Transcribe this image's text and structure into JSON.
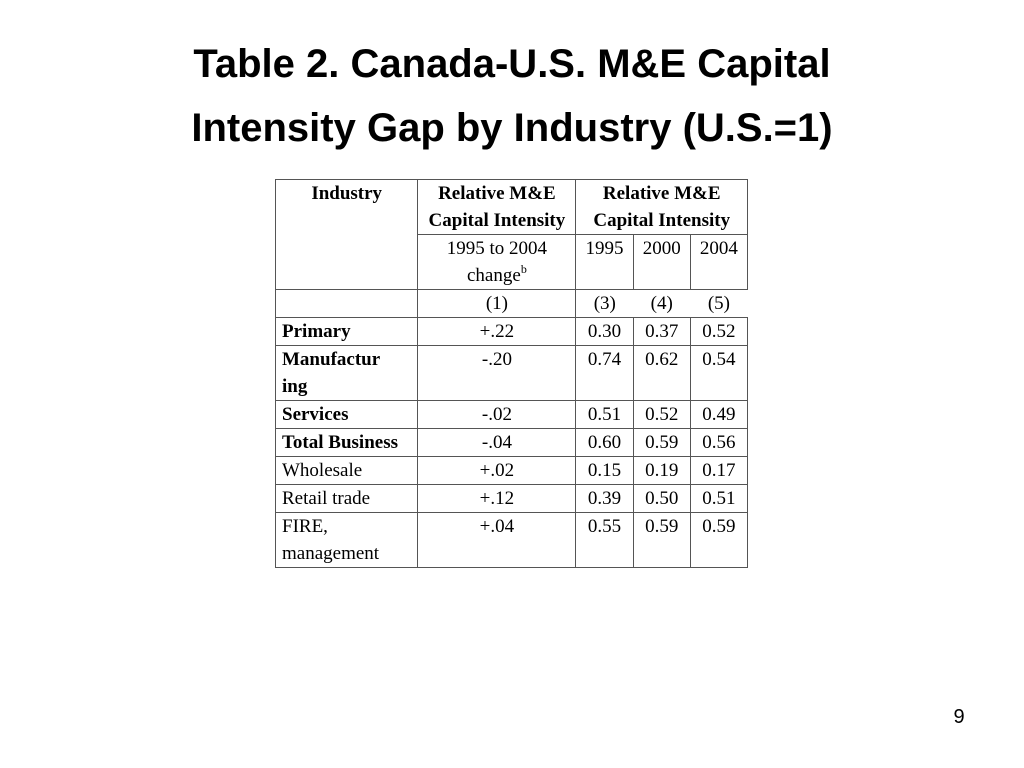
{
  "slide": {
    "title_line1": "Table 2. Canada-U.S. M&E Capital",
    "title_line2": "Intensity Gap by Industry (U.S.=1)",
    "page_number": "9"
  },
  "table": {
    "header": {
      "industry_label": "Industry",
      "group1_label": "Relative M&E Capital Intensity",
      "group2_label": "Relative M&E Capital Intensity",
      "change_label": "1995 to 2004 change",
      "change_footnote": "b",
      "years": [
        "1995",
        "2000",
        "2004"
      ],
      "col_numbers": [
        "(1)",
        "(3)",
        "(4)",
        "(5)"
      ]
    },
    "rows": [
      {
        "industry": "Primary",
        "bold": true,
        "change": "+.22",
        "y1995": "0.30",
        "y2000": "0.37",
        "y2004": "0.52"
      },
      {
        "industry": "Manufacturing",
        "bold": true,
        "change": "-.20",
        "y1995": "0.74",
        "y2000": "0.62",
        "y2004": "0.54"
      },
      {
        "industry": "Services",
        "bold": true,
        "change": "-.02",
        "y1995": "0.51",
        "y2000": "0.52",
        "y2004": "0.49"
      },
      {
        "industry": "Total Business",
        "bold": true,
        "change": "-.04",
        "y1995": "0.60",
        "y2000": "0.59",
        "y2004": "0.56"
      },
      {
        "industry": "Wholesale",
        "bold": false,
        "change": "+.02",
        "y1995": "0.15",
        "y2000": "0.19",
        "y2004": "0.17"
      },
      {
        "industry": "Retail trade",
        "bold": false,
        "change": "+.12",
        "y1995": "0.39",
        "y2000": "0.50",
        "y2004": "0.51"
      },
      {
        "industry": "FIRE, management",
        "bold": false,
        "change": "+.04",
        "y1995": "0.55",
        "y2000": "0.59",
        "y2004": "0.59"
      }
    ]
  }
}
